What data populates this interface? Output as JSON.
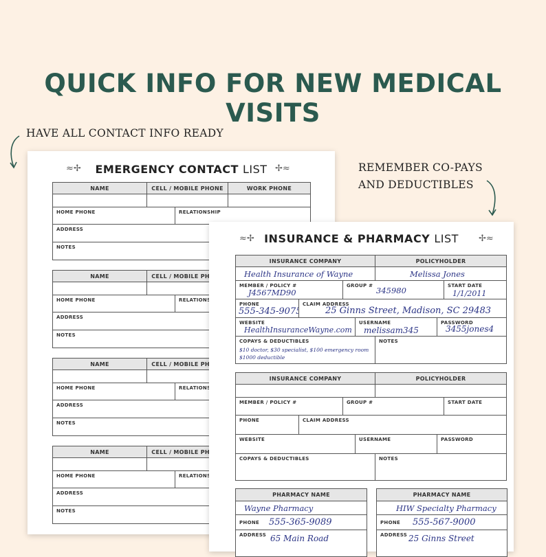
{
  "headline": "QUICK INFO FOR NEW MEDICAL VISITS",
  "callouts": {
    "left": "HAVE ALL CONTACT INFO READY",
    "right_line1": "REMEMBER CO-PAYS",
    "right_line2": "AND DEDUCTIBLES"
  },
  "emergency_sheet": {
    "title_bold": "EMERGENCY CONTACT",
    "title_light": "LIST",
    "labels": {
      "name": "NAME",
      "cell": "CELL / MOBILE PHONE",
      "work": "WORK PHONE",
      "home": "HOME PHONE",
      "relationship": "RELATIONSHIP",
      "address": "ADDRESS",
      "notes": "NOTES"
    },
    "block_count": 4
  },
  "insurance_sheet": {
    "title_bold": "INSURANCE & PHARMACY",
    "title_light": "LIST",
    "labels": {
      "company": "INSURANCE COMPANY",
      "policyholder": "POLICYHOLDER",
      "member": "MEMBER / POLICY #",
      "group": "GROUP #",
      "start": "START DATE",
      "phone": "PHONE",
      "claim": "CLAIM ADDRESS",
      "website": "WEBSITE",
      "username": "USERNAME",
      "password": "PASSWORD",
      "copays": "COPAYS & DEDUCTIBLES",
      "notes": "NOTES",
      "pharmacy": "PHARMACY NAME",
      "address": "ADDRESS"
    },
    "insurance_entries": [
      {
        "company": "Health Insurance of Wayne",
        "policyholder": "Melissa Jones",
        "member": "J4567MD90",
        "group": "345980",
        "start": "1/1/2011",
        "phone": "555-345-9075",
        "claim": "25 Ginns Street, Madison, SC 29483",
        "website": "HealthInsuranceWayne.com",
        "username": "melissam345",
        "password": "3455jones4",
        "copays_line1": "$10 doctor, $30 specialist, $100 emergency room",
        "copays_line2": "$1000 deductible",
        "notes": ""
      },
      {
        "company": "",
        "policyholder": "",
        "member": "",
        "group": "",
        "start": "",
        "phone": "",
        "claim": "",
        "website": "",
        "username": "",
        "password": "",
        "copays_line1": "",
        "copays_line2": "",
        "notes": ""
      }
    ],
    "pharmacies": [
      {
        "name": "Wayne Pharmacy",
        "phone": "555-365-9089",
        "address": "65 Main Road"
      },
      {
        "name": "HIW Specialty Pharmacy",
        "phone": "555-567-9000",
        "address": "25 Ginns Street"
      }
    ]
  },
  "colors": {
    "background": "#fdf1e4",
    "headline": "#2b5a4f",
    "handwriting": "#2a3385",
    "header_fill": "#e6e6e6"
  }
}
